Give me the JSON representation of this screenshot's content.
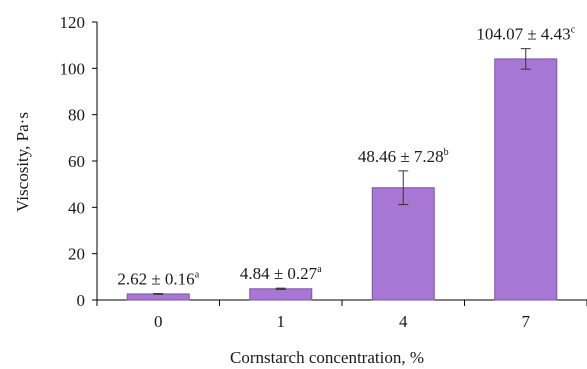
{
  "chart_data": {
    "type": "bar",
    "categories": [
      "0",
      "1",
      "4",
      "7"
    ],
    "values": [
      2.62,
      4.84,
      48.46,
      104.07
    ],
    "errors": [
      0.16,
      0.27,
      7.28,
      4.43
    ],
    "labels": [
      {
        "main": "2.62 ± 0.16",
        "sup": "a"
      },
      {
        "main": "4.84 ± 0.27",
        "sup": "a"
      },
      {
        "main": "48.46 ± 7.28",
        "sup": "b"
      },
      {
        "main": "104.07 ± 4.43",
        "sup": "c"
      }
    ],
    "xlabel": "Cornstarch concentration, %",
    "ylabel": "Viscosity, Pa·s",
    "ylim": [
      0,
      120
    ],
    "yticks": [
      0,
      20,
      40,
      60,
      80,
      100,
      120
    ],
    "grid": false,
    "bar_color": "#a876d4",
    "bar_edge_color": "#7a56a0"
  }
}
